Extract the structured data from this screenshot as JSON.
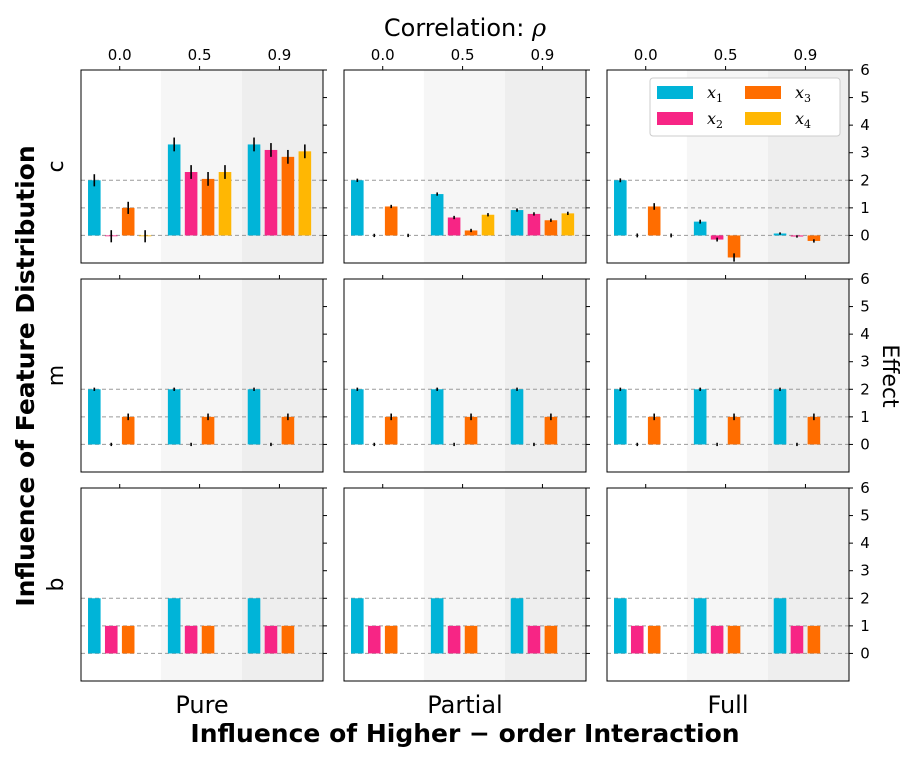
{
  "figure": {
    "suptitle_prefix": "Correlation: ",
    "suptitle_symbol": "ρ",
    "xlabel": "Influence of Higher − order Interaction",
    "ylabel_left": "Influence of Feature Distribution",
    "ylabel_right": "Effect"
  },
  "colors": {
    "x1": "#00b4d8",
    "x2": "#f72585",
    "x3": "#ff6d00",
    "x4": "#ffb703",
    "shade_mid": "#f6f6f6",
    "shade_dark": "#eeeeee",
    "gridline": "#9a9a9a"
  },
  "chart_data": {
    "type": "bar",
    "title": "Correlation: ρ",
    "xlabel": "Influence of Higher − order Interaction",
    "ylabel": "Effect",
    "columns": [
      "Pure",
      "Partial",
      "Full"
    ],
    "rows": [
      "c",
      "m",
      "b"
    ],
    "correlation_groups": [
      "0.0",
      "0.5",
      "0.9"
    ],
    "series_names": [
      "x1",
      "x2",
      "x3",
      "x4"
    ],
    "legend": [
      {
        "key": "x1",
        "label": "x",
        "sub": "1"
      },
      {
        "key": "x2",
        "label": "x",
        "sub": "2"
      },
      {
        "key": "x3",
        "label": "x",
        "sub": "3"
      },
      {
        "key": "x4",
        "label": "x",
        "sub": "4"
      }
    ],
    "legend_position": "top-right",
    "yticks": [
      0,
      1,
      2,
      3,
      4,
      5,
      6
    ],
    "ylim": [
      -1.0,
      6.0
    ],
    "reference_lines": [
      0,
      1,
      2
    ],
    "panels": [
      {
        "row": "c",
        "col": "Pure",
        "groups": [
          {
            "rho": "0.0",
            "values": [
              2.0,
              -0.03,
              1.0,
              -0.03
            ],
            "errors": [
              0.22,
              0.22,
              0.22,
              0.22
            ]
          },
          {
            "rho": "0.5",
            "values": [
              3.3,
              2.3,
              2.05,
              2.3
            ],
            "errors": [
              0.25,
              0.25,
              0.25,
              0.25
            ]
          },
          {
            "rho": "0.9",
            "values": [
              3.3,
              3.1,
              2.85,
              3.05
            ],
            "errors": [
              0.25,
              0.25,
              0.25,
              0.25
            ]
          }
        ]
      },
      {
        "row": "c",
        "col": "Partial",
        "groups": [
          {
            "rho": "0.0",
            "values": [
              2.0,
              0.0,
              1.05,
              0.0
            ],
            "errors": [
              0.06,
              0.06,
              0.06,
              0.06
            ]
          },
          {
            "rho": "0.5",
            "values": [
              1.5,
              0.65,
              0.18,
              0.75
            ],
            "errors": [
              0.06,
              0.06,
              0.06,
              0.06
            ]
          },
          {
            "rho": "0.9",
            "values": [
              0.92,
              0.78,
              0.55,
              0.8
            ],
            "errors": [
              0.06,
              0.06,
              0.06,
              0.06
            ]
          }
        ]
      },
      {
        "row": "c",
        "col": "Full",
        "groups": [
          {
            "rho": "0.0",
            "values": [
              2.0,
              0.0,
              1.05,
              0.0
            ],
            "errors": [
              0.07,
              0.07,
              0.12,
              0.07
            ]
          },
          {
            "rho": "0.5",
            "values": [
              0.5,
              -0.15,
              -0.8,
              0.0
            ],
            "errors": [
              0.07,
              0.07,
              0.15,
              0.0
            ]
          },
          {
            "rho": "0.9",
            "values": [
              0.07,
              -0.04,
              -0.2,
              0.0
            ],
            "errors": [
              0.04,
              0.04,
              0.06,
              0.0
            ]
          }
        ]
      },
      {
        "row": "m",
        "col": "Pure",
        "groups": [
          {
            "rho": "0.0",
            "values": [
              2.0,
              0.0,
              1.0,
              0.0
            ],
            "errors": [
              0.06,
              0.06,
              0.12,
              0.0
            ]
          },
          {
            "rho": "0.5",
            "values": [
              2.0,
              0.0,
              1.0,
              0.0
            ],
            "errors": [
              0.06,
              0.06,
              0.12,
              0.0
            ]
          },
          {
            "rho": "0.9",
            "values": [
              2.0,
              0.0,
              1.0,
              0.0
            ],
            "errors": [
              0.06,
              0.06,
              0.12,
              0.0
            ]
          }
        ]
      },
      {
        "row": "m",
        "col": "Partial",
        "groups": [
          {
            "rho": "0.0",
            "values": [
              2.0,
              0.0,
              1.0,
              0.0
            ],
            "errors": [
              0.06,
              0.06,
              0.12,
              0.0
            ]
          },
          {
            "rho": "0.5",
            "values": [
              2.0,
              0.0,
              1.0,
              0.0
            ],
            "errors": [
              0.06,
              0.06,
              0.12,
              0.0
            ]
          },
          {
            "rho": "0.9",
            "values": [
              2.0,
              0.0,
              1.0,
              0.0
            ],
            "errors": [
              0.06,
              0.06,
              0.12,
              0.0
            ]
          }
        ]
      },
      {
        "row": "m",
        "col": "Full",
        "groups": [
          {
            "rho": "0.0",
            "values": [
              2.0,
              0.0,
              1.0,
              0.0
            ],
            "errors": [
              0.06,
              0.06,
              0.12,
              0.0
            ]
          },
          {
            "rho": "0.5",
            "values": [
              2.0,
              0.0,
              1.0,
              0.0
            ],
            "errors": [
              0.06,
              0.06,
              0.12,
              0.0
            ]
          },
          {
            "rho": "0.9",
            "values": [
              2.0,
              0.0,
              1.0,
              0.0
            ],
            "errors": [
              0.06,
              0.06,
              0.12,
              0.0
            ]
          }
        ]
      },
      {
        "row": "b",
        "col": "Pure",
        "groups": [
          {
            "rho": "0.0",
            "values": [
              2.0,
              1.0,
              1.0,
              0.0
            ],
            "errors": [
              0,
              0,
              0,
              0
            ]
          },
          {
            "rho": "0.5",
            "values": [
              2.0,
              1.0,
              1.0,
              0.0
            ],
            "errors": [
              0,
              0,
              0,
              0
            ]
          },
          {
            "rho": "0.9",
            "values": [
              2.0,
              1.0,
              1.0,
              0.0
            ],
            "errors": [
              0,
              0,
              0,
              0
            ]
          }
        ]
      },
      {
        "row": "b",
        "col": "Partial",
        "groups": [
          {
            "rho": "0.0",
            "values": [
              2.0,
              1.0,
              1.0,
              0.0
            ],
            "errors": [
              0,
              0,
              0,
              0
            ]
          },
          {
            "rho": "0.5",
            "values": [
              2.0,
              1.0,
              1.0,
              0.0
            ],
            "errors": [
              0,
              0,
              0,
              0
            ]
          },
          {
            "rho": "0.9",
            "values": [
              2.0,
              1.0,
              1.0,
              0.0
            ],
            "errors": [
              0,
              0,
              0,
              0
            ]
          }
        ]
      },
      {
        "row": "b",
        "col": "Full",
        "groups": [
          {
            "rho": "0.0",
            "values": [
              2.0,
              1.0,
              1.0,
              0.0
            ],
            "errors": [
              0,
              0,
              0,
              0
            ]
          },
          {
            "rho": "0.5",
            "values": [
              2.0,
              1.0,
              1.0,
              0.0
            ],
            "errors": [
              0,
              0,
              0,
              0
            ]
          },
          {
            "rho": "0.9",
            "values": [
              2.0,
              1.0,
              1.0,
              0.0
            ],
            "errors": [
              0,
              0,
              0,
              0
            ]
          }
        ]
      }
    ]
  }
}
